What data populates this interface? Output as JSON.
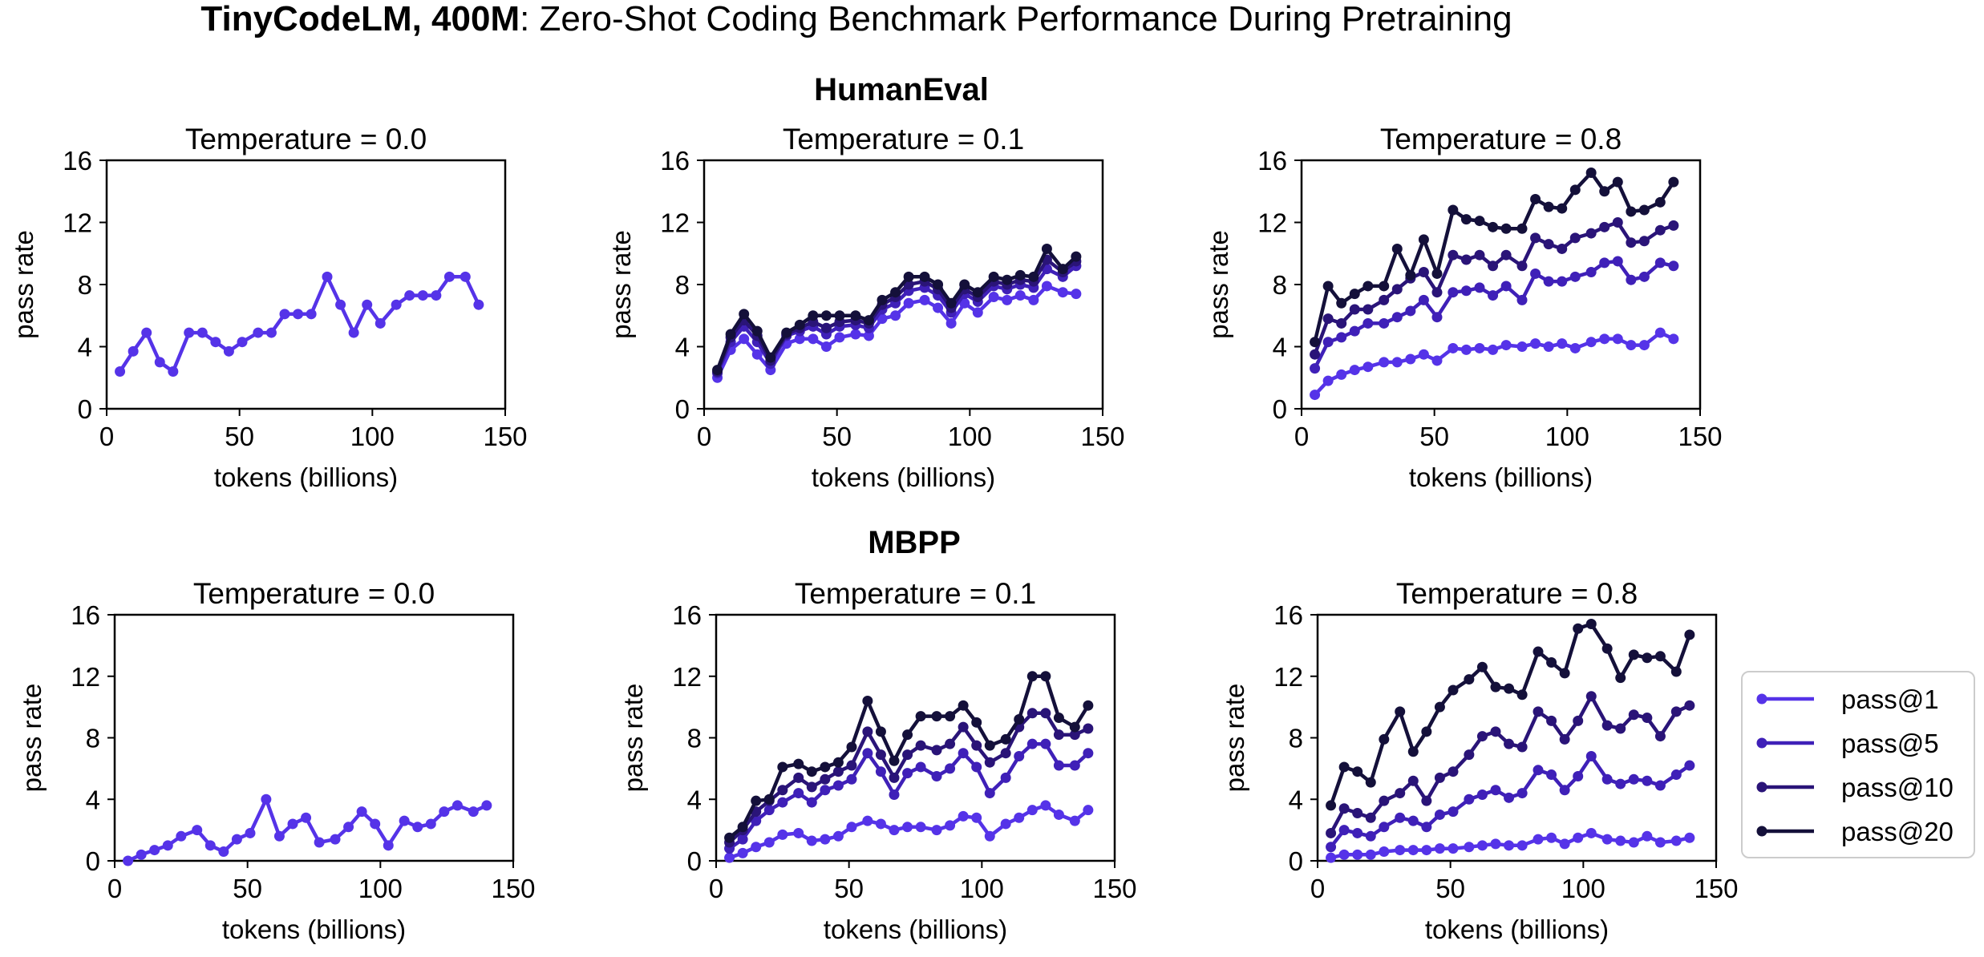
{
  "figure": {
    "title_bold": "TinyCodeLM, 400M",
    "title_rest": ": Zero-Shot Coding Benchmark Performance During Pretraining"
  },
  "colors": {
    "pass@1": "#5533e8",
    "pass@5": "#3f20b8",
    "pass@10": "#2a1478",
    "pass@20": "#14103a"
  },
  "legend": {
    "entries": [
      "pass@1",
      "pass@5",
      "pass@10",
      "pass@20"
    ]
  },
  "sections": [
    {
      "title": "HumanEval"
    },
    {
      "title": "MBPP"
    }
  ],
  "chart_data": [
    {
      "type": "line",
      "benchmark": "HumanEval",
      "title": "Temperature = 0.0",
      "xlabel": "tokens (billions)",
      "ylabel": "pass rate",
      "xlim": [
        0,
        150
      ],
      "ylim": [
        0,
        16
      ],
      "xticks": [
        0,
        50,
        100,
        150
      ],
      "yticks": [
        0,
        4,
        8,
        12,
        16
      ],
      "x": [
        5,
        10,
        15,
        20,
        25,
        31,
        36,
        41,
        46,
        51,
        57,
        62,
        67,
        72,
        77,
        83,
        88,
        93,
        98,
        103,
        109,
        114,
        119,
        124,
        129,
        135,
        140
      ],
      "series": [
        {
          "name": "pass@1",
          "values": [
            2.4,
            3.7,
            4.9,
            3.0,
            2.4,
            4.9,
            4.9,
            4.3,
            3.7,
            4.3,
            4.9,
            4.9,
            6.1,
            6.1,
            6.1,
            8.5,
            6.7,
            4.9,
            6.7,
            5.5,
            6.7,
            7.3,
            7.3,
            7.3,
            8.5,
            8.5,
            6.7
          ]
        }
      ]
    },
    {
      "type": "line",
      "benchmark": "HumanEval",
      "title": "Temperature = 0.1",
      "xlabel": "tokens (billions)",
      "ylabel": "pass rate",
      "xlim": [
        0,
        150
      ],
      "ylim": [
        0,
        16
      ],
      "xticks": [
        0,
        50,
        100,
        150
      ],
      "yticks": [
        0,
        4,
        8,
        12,
        16
      ],
      "x": [
        5,
        10,
        15,
        20,
        25,
        31,
        36,
        41,
        46,
        51,
        57,
        62,
        67,
        72,
        77,
        83,
        88,
        93,
        98,
        103,
        109,
        114,
        119,
        124,
        129,
        135,
        140
      ],
      "series": [
        {
          "name": "pass@1",
          "values": [
            2.0,
            3.8,
            4.5,
            3.5,
            2.5,
            4.2,
            4.5,
            4.5,
            4.0,
            4.6,
            4.8,
            4.7,
            5.8,
            6.0,
            6.8,
            7.0,
            6.5,
            5.5,
            6.8,
            6.2,
            7.2,
            7.0,
            7.3,
            7.0,
            7.9,
            7.5,
            7.4
          ]
        },
        {
          "name": "pass@5",
          "values": [
            2.3,
            4.3,
            5.3,
            4.3,
            2.9,
            4.7,
            5.0,
            5.3,
            4.8,
            5.3,
            5.4,
            5.2,
            6.4,
            6.8,
            7.6,
            7.8,
            7.3,
            6.2,
            7.4,
            6.9,
            7.9,
            7.7,
            8.0,
            7.8,
            9.0,
            8.5,
            9.2
          ]
        },
        {
          "name": "pass@10",
          "values": [
            2.4,
            4.6,
            5.7,
            4.7,
            3.1,
            4.8,
            5.2,
            5.6,
            5.2,
            5.6,
            5.7,
            5.5,
            6.7,
            7.2,
            8.0,
            8.2,
            7.7,
            6.5,
            7.7,
            7.2,
            8.2,
            8.0,
            8.3,
            8.2,
            9.6,
            8.8,
            9.5
          ]
        },
        {
          "name": "pass@20",
          "values": [
            2.5,
            4.8,
            6.1,
            5.0,
            3.3,
            4.9,
            5.4,
            6.0,
            6.0,
            6.0,
            6.0,
            5.7,
            7.0,
            7.5,
            8.5,
            8.5,
            8.0,
            6.8,
            8.0,
            7.5,
            8.5,
            8.3,
            8.6,
            8.5,
            10.3,
            9.0,
            9.8
          ]
        }
      ]
    },
    {
      "type": "line",
      "benchmark": "HumanEval",
      "title": "Temperature = 0.8",
      "xlabel": "tokens (billions)",
      "ylabel": "pass rate",
      "xlim": [
        0,
        150
      ],
      "ylim": [
        0,
        16
      ],
      "xticks": [
        0,
        50,
        100,
        150
      ],
      "yticks": [
        0,
        4,
        8,
        12,
        16
      ],
      "x": [
        5,
        10,
        15,
        20,
        25,
        31,
        36,
        41,
        46,
        51,
        57,
        62,
        67,
        72,
        77,
        83,
        88,
        93,
        98,
        103,
        109,
        114,
        119,
        124,
        129,
        135,
        140
      ],
      "series": [
        {
          "name": "pass@1",
          "values": [
            0.9,
            1.8,
            2.2,
            2.5,
            2.7,
            3.0,
            3.0,
            3.2,
            3.5,
            3.1,
            3.9,
            3.8,
            3.9,
            3.8,
            4.1,
            4.0,
            4.2,
            4.0,
            4.2,
            3.9,
            4.3,
            4.5,
            4.5,
            4.1,
            4.1,
            4.9,
            4.5
          ]
        },
        {
          "name": "pass@5",
          "values": [
            2.6,
            4.3,
            4.6,
            5.0,
            5.5,
            5.5,
            5.9,
            6.3,
            7.0,
            5.9,
            7.5,
            7.6,
            7.8,
            7.3,
            7.9,
            7.0,
            8.7,
            8.2,
            8.2,
            8.5,
            8.8,
            9.4,
            9.5,
            8.3,
            8.5,
            9.4,
            9.2
          ]
        },
        {
          "name": "pass@10",
          "values": [
            3.5,
            5.8,
            5.5,
            6.4,
            6.4,
            7.0,
            7.7,
            8.4,
            8.8,
            7.5,
            9.9,
            9.6,
            9.9,
            9.2,
            9.9,
            9.2,
            11.0,
            10.6,
            10.3,
            11.0,
            11.3,
            11.7,
            12.0,
            10.7,
            10.8,
            11.5,
            11.8
          ]
        },
        {
          "name": "pass@20",
          "values": [
            4.3,
            7.9,
            6.8,
            7.4,
            7.9,
            7.9,
            10.3,
            8.6,
            10.9,
            8.7,
            12.8,
            12.2,
            12.1,
            11.7,
            11.6,
            11.6,
            13.5,
            13.0,
            12.9,
            14.1,
            15.2,
            14.0,
            14.6,
            12.7,
            12.8,
            13.3,
            14.6
          ]
        }
      ]
    },
    {
      "type": "line",
      "benchmark": "MBPP",
      "title": "Temperature = 0.0",
      "xlabel": "tokens (billions)",
      "ylabel": "pass rate",
      "xlim": [
        0,
        150
      ],
      "ylim": [
        0,
        16
      ],
      "xticks": [
        0,
        50,
        100,
        150
      ],
      "yticks": [
        0,
        4,
        8,
        12,
        16
      ],
      "x": [
        5,
        10,
        15,
        20,
        25,
        31,
        36,
        41,
        46,
        51,
        57,
        62,
        67,
        72,
        77,
        83,
        88,
        93,
        98,
        103,
        109,
        114,
        119,
        124,
        129,
        135,
        140
      ],
      "series": [
        {
          "name": "pass@1",
          "values": [
            0.0,
            0.4,
            0.7,
            1.0,
            1.6,
            2.0,
            1.0,
            0.6,
            1.4,
            1.8,
            4.0,
            1.6,
            2.4,
            2.8,
            1.2,
            1.4,
            2.2,
            3.2,
            2.4,
            1.0,
            2.6,
            2.2,
            2.4,
            3.2,
            3.6,
            3.2,
            3.6
          ]
        }
      ]
    },
    {
      "type": "line",
      "benchmark": "MBPP",
      "title": "Temperature = 0.1",
      "xlabel": "tokens (billions)",
      "ylabel": "pass rate",
      "xlim": [
        0,
        150
      ],
      "ylim": [
        0,
        16
      ],
      "xticks": [
        0,
        50,
        100,
        150
      ],
      "yticks": [
        0,
        4,
        8,
        12,
        16
      ],
      "x": [
        5,
        10,
        15,
        20,
        25,
        31,
        36,
        41,
        46,
        51,
        57,
        62,
        67,
        72,
        77,
        83,
        88,
        93,
        98,
        103,
        109,
        114,
        119,
        124,
        129,
        135,
        140
      ],
      "series": [
        {
          "name": "pass@1",
          "values": [
            0.2,
            0.5,
            0.9,
            1.2,
            1.7,
            1.8,
            1.3,
            1.4,
            1.6,
            2.2,
            2.6,
            2.4,
            2.0,
            2.2,
            2.2,
            2.0,
            2.3,
            2.9,
            2.8,
            1.6,
            2.4,
            2.8,
            3.3,
            3.6,
            3.0,
            2.6,
            3.3
          ]
        },
        {
          "name": "pass@5",
          "values": [
            0.8,
            1.4,
            2.6,
            3.3,
            3.8,
            4.4,
            3.8,
            4.6,
            4.9,
            5.3,
            7.0,
            5.8,
            4.3,
            5.7,
            6.1,
            5.5,
            6.0,
            7.0,
            6.1,
            4.4,
            5.4,
            6.8,
            7.6,
            7.6,
            6.2,
            6.2,
            7.0
          ]
        },
        {
          "name": "pass@10",
          "values": [
            1.2,
            2.0,
            3.2,
            3.9,
            4.6,
            5.4,
            4.8,
            5.3,
            5.8,
            6.2,
            8.4,
            6.9,
            5.4,
            6.9,
            7.5,
            7.2,
            7.6,
            8.7,
            7.5,
            6.4,
            7.0,
            8.7,
            9.6,
            9.6,
            8.2,
            8.2,
            8.6
          ]
        },
        {
          "name": "pass@20",
          "values": [
            1.5,
            2.2,
            3.9,
            4.0,
            6.1,
            6.3,
            5.8,
            6.1,
            6.4,
            7.4,
            10.4,
            8.4,
            6.5,
            8.2,
            9.4,
            9.4,
            9.4,
            10.1,
            9.0,
            7.5,
            7.9,
            9.2,
            12.0,
            12.0,
            9.3,
            8.7,
            10.1
          ]
        }
      ]
    },
    {
      "type": "line",
      "benchmark": "MBPP",
      "title": "Temperature = 0.8",
      "xlabel": "tokens (billions)",
      "ylabel": "pass rate",
      "xlim": [
        0,
        150
      ],
      "ylim": [
        0,
        16
      ],
      "xticks": [
        0,
        50,
        100,
        150
      ],
      "yticks": [
        0,
        4,
        8,
        12,
        16
      ],
      "x": [
        5,
        10,
        15,
        20,
        25,
        31,
        36,
        41,
        46,
        51,
        57,
        62,
        67,
        72,
        77,
        83,
        88,
        93,
        98,
        103,
        109,
        114,
        119,
        124,
        129,
        135,
        140
      ],
      "series": [
        {
          "name": "pass@1",
          "values": [
            0.2,
            0.4,
            0.4,
            0.4,
            0.6,
            0.7,
            0.7,
            0.7,
            0.8,
            0.8,
            0.9,
            1.0,
            1.1,
            1.0,
            1.0,
            1.4,
            1.5,
            1.1,
            1.5,
            1.8,
            1.4,
            1.3,
            1.2,
            1.6,
            1.2,
            1.3,
            1.5
          ]
        },
        {
          "name": "pass@5",
          "values": [
            0.9,
            2.0,
            1.8,
            1.6,
            2.2,
            2.8,
            2.6,
            2.2,
            3.0,
            3.2,
            4.0,
            4.3,
            4.6,
            4.1,
            4.4,
            5.9,
            5.6,
            4.6,
            5.5,
            6.8,
            5.3,
            5.0,
            5.3,
            5.2,
            4.9,
            5.6,
            6.2
          ]
        },
        {
          "name": "pass@10",
          "values": [
            1.8,
            3.4,
            3.1,
            2.8,
            3.9,
            4.4,
            5.2,
            3.9,
            5.4,
            5.8,
            6.9,
            8.1,
            8.4,
            7.6,
            7.4,
            9.7,
            9.1,
            7.9,
            9.1,
            10.7,
            8.8,
            8.6,
            9.5,
            9.3,
            8.1,
            9.7,
            10.1
          ]
        },
        {
          "name": "pass@20",
          "values": [
            3.6,
            6.1,
            5.8,
            5.1,
            7.9,
            9.7,
            7.1,
            8.4,
            10.0,
            11.1,
            11.8,
            12.6,
            11.3,
            11.2,
            10.8,
            13.6,
            12.9,
            12.2,
            15.1,
            15.4,
            13.8,
            11.9,
            13.4,
            13.2,
            13.3,
            12.3,
            14.7
          ]
        }
      ]
    }
  ]
}
